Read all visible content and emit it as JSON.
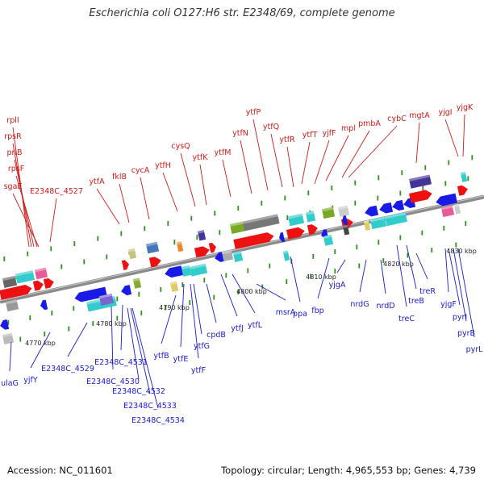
{
  "title": "Escherichia coli O127:H6 str. E2348/69, complete genome",
  "footer": {
    "accession": "Accession: NC_011601",
    "summary": "Topology: circular; Length: 4,965,553 bp; Genes: 4,739"
  },
  "colors": {
    "forward_label": "#d11a1a",
    "reverse_label": "#1a1acc",
    "backbone": "#8a8a8a",
    "tick": "#2f8f1f"
  },
  "scale_labels": [
    "4770 kbp",
    "4780 kbp",
    "4790 kbp",
    "4800 kbp",
    "4810 kbp",
    "4820 kbp",
    "4830 kbp"
  ],
  "forward_labels": [
    "rplI",
    "rpsR",
    "priB",
    "rpsF",
    "sgaE",
    "E2348C_4527",
    "ytfA",
    "fklB",
    "cycA",
    "ytfH",
    "cysQ",
    "ytfK",
    "ytfM",
    "ytfN",
    "ytfP",
    "ytfQ",
    "ytfR",
    "ytfT",
    "yjfF",
    "mpl",
    "pmbA",
    "cybC",
    "mgtA",
    "yjgI",
    "yjgK"
  ],
  "reverse_labels": [
    "ulaG",
    "yjfY",
    "E2348C_4529",
    "E2348C_4530",
    "E2348C_4531",
    "E2348C_4532",
    "E2348C_4533",
    "E2348C_4534",
    "ytfB",
    "ytfE",
    "ytfF",
    "ytfG",
    "cpdB",
    "ytfJ",
    "ytfL",
    "msrA",
    "ppa",
    "fbp",
    "yjgA",
    "nrdG",
    "nrdD",
    "treC",
    "treB",
    "treR",
    "yjgF",
    "pyrI",
    "pyrB",
    "pyrL"
  ]
}
